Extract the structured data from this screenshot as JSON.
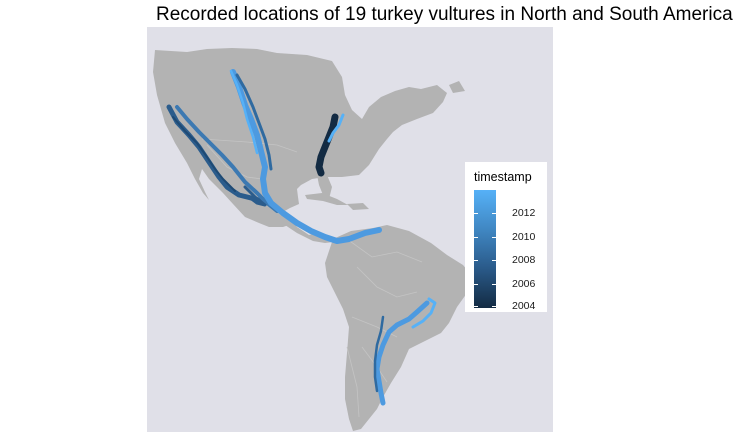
{
  "title": "Recorded locations of 19 turkey vultures in North and South America",
  "legend": {
    "title": "timestamp",
    "ticks": [
      "2012",
      "2010",
      "2008",
      "2006",
      "2004"
    ],
    "tick_values": [
      2012,
      2010,
      2008,
      2006,
      2004
    ],
    "range": [
      2003.6,
      2013.2
    ],
    "colors": {
      "high": "#56B1F7",
      "low": "#132B43"
    }
  },
  "colors": {
    "ocean": "#e0e0e8",
    "land": "#b3b3b3",
    "border": "#c4c4c4"
  }
}
